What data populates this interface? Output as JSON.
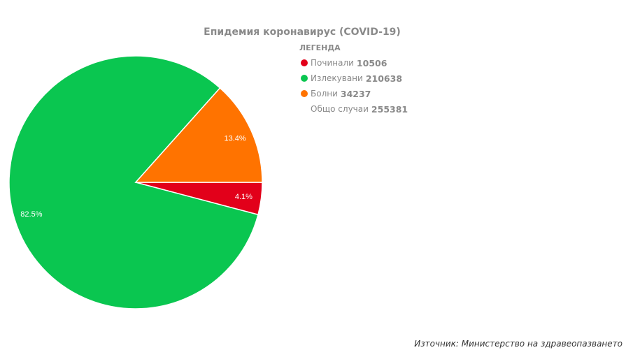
{
  "chart_data": {
    "type": "pie",
    "title": "Епидемия коронавирус (COVID-19)",
    "legend_title": "ЛЕГЕНДА",
    "legend_placement": "top-right",
    "slices": [
      {
        "label": "Починали",
        "value": 10506,
        "percent_label": "4.1%",
        "color": "#e2001a"
      },
      {
        "label": "Излекувани",
        "value": 210638,
        "percent_label": "82.5%",
        "color": "#0ac650"
      },
      {
        "label": "Болни",
        "value": 34237,
        "percent_label": "13.4%",
        "color": "#ff7300"
      }
    ],
    "total": {
      "label": "Общо случаи",
      "value": 255381
    }
  },
  "source": "Източник: Министерство на здравеопазването"
}
